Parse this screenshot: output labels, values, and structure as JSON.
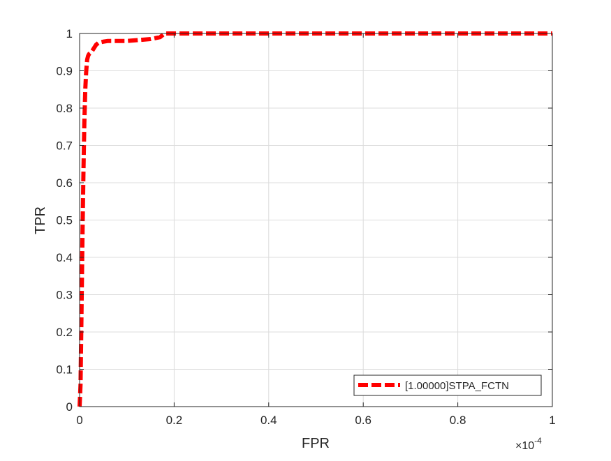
{
  "chart_data": {
    "type": "line",
    "title": "",
    "xlabel": "FPR",
    "ylabel": "TPR",
    "x_exponent_label": "×10",
    "x_exponent_power": "-4",
    "xlim": [
      0,
      1
    ],
    "ylim": [
      0,
      1
    ],
    "x_unit_scale": "1e-4",
    "xticks": [
      0,
      0.2,
      0.4,
      0.6,
      0.8,
      1
    ],
    "xtick_labels": [
      "0",
      "0.2",
      "0.4",
      "0.6",
      "0.8",
      "1"
    ],
    "yticks": [
      0,
      0.1,
      0.2,
      0.3,
      0.4,
      0.5,
      0.6,
      0.7,
      0.8,
      0.9,
      1
    ],
    "ytick_labels": [
      "0",
      "0.1",
      "0.2",
      "0.3",
      "0.4",
      "0.5",
      "0.6",
      "0.7",
      "0.8",
      "0.9",
      "1"
    ],
    "grid": true,
    "legend_position": "bottom-right",
    "series": [
      {
        "name": "[1.00000]STPA_FCTN",
        "color": "#ff0000",
        "line_style": "dashed",
        "x": [
          0,
          0.002,
          0.004,
          0.006,
          0.008,
          0.01,
          0.012,
          0.014,
          0.016,
          0.018,
          0.02,
          0.025,
          0.03,
          0.035,
          0.04,
          0.05,
          0.06,
          0.08,
          0.1,
          0.12,
          0.15,
          0.17,
          0.18,
          0.19,
          0.25,
          0.5,
          0.75,
          1
        ],
        "y": [
          0.0,
          0.06,
          0.25,
          0.45,
          0.62,
          0.76,
          0.85,
          0.9,
          0.93,
          0.94,
          0.945,
          0.95,
          0.96,
          0.97,
          0.975,
          0.978,
          0.98,
          0.98,
          0.98,
          0.982,
          0.985,
          0.99,
          1.0,
          1.0,
          1.0,
          1.0,
          1.0,
          1.0
        ]
      }
    ]
  }
}
